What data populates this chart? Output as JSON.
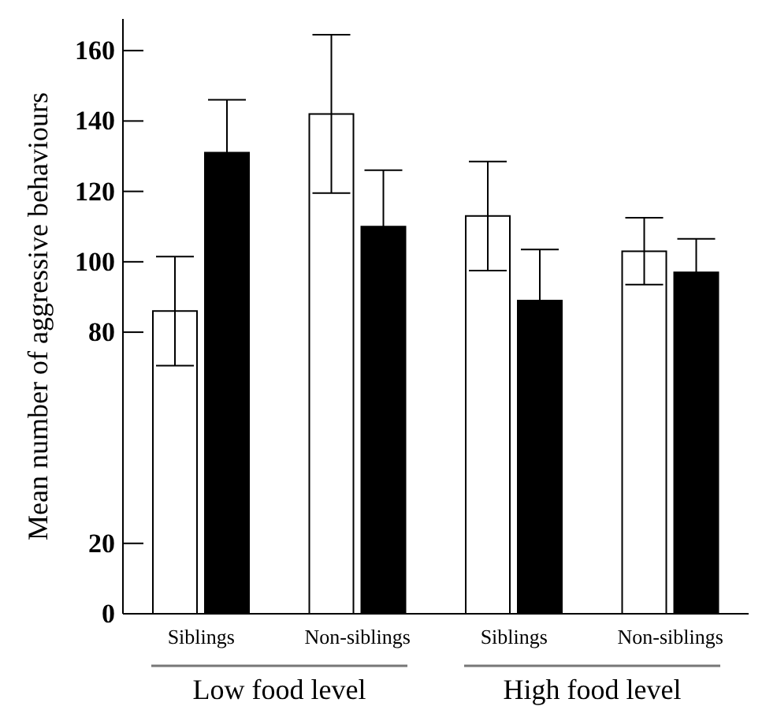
{
  "chart_data": {
    "type": "bar",
    "ylabel": "Mean number of aggressive behaviours",
    "categories": [
      "Siblings",
      "Non-siblings",
      "Siblings",
      "Non-siblings"
    ],
    "series": [
      {
        "color": "#ffffff",
        "values": [
          86,
          142,
          113,
          103
        ],
        "errors": [
          15.5,
          22.5,
          15.5,
          9.5
        ]
      },
      {
        "color": "#000000",
        "values": [
          131,
          110,
          89,
          97
        ],
        "errors": [
          15,
          16,
          14.5,
          9.5
        ]
      }
    ],
    "ylim": [
      0,
      169
    ],
    "yticks": [
      0,
      20,
      80,
      100,
      120,
      140,
      160
    ],
    "annotations": [
      "Low food level",
      "High food level"
    ]
  }
}
